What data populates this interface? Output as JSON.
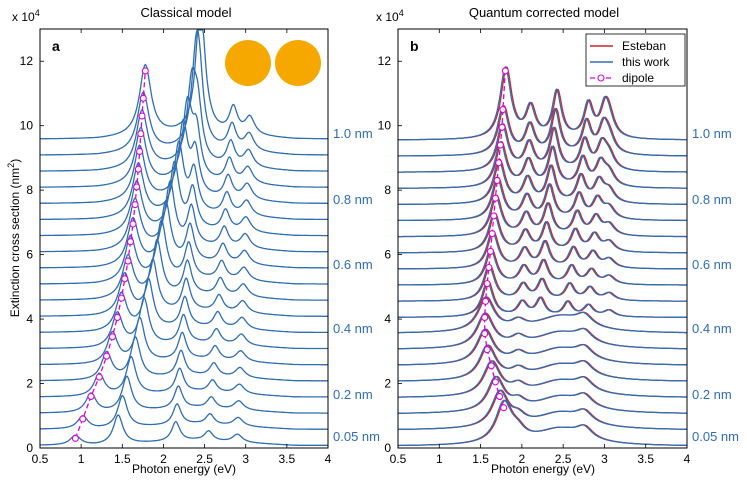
{
  "chart_data": [
    {
      "panel_label": "a",
      "type": "line",
      "title": "Classical model",
      "xlabel": "Photon energy (eV)",
      "ylabel": "Extinction cross section (nm",
      "ylabel_sup": "2",
      "ylabel_end": ")",
      "exponent_label": "x 10",
      "exponent_power": "4",
      "xlim": [
        0.5,
        4
      ],
      "ylim": [
        0,
        13
      ],
      "x_ticks": [
        "0.5",
        "1",
        "1.5",
        "2",
        "2.5",
        "3",
        "3.5",
        "4"
      ],
      "y_ticks": [
        "0",
        "2",
        "4",
        "6",
        "8",
        "10",
        "12"
      ],
      "gap_labels": [
        "0.05 nm",
        "0.2 nm",
        "0.4 nm",
        "0.6 nm",
        "0.8 nm",
        "1.0 nm"
      ],
      "curves": 20,
      "offset_step": 0.5,
      "dipole_trace": {
        "name": "dipole",
        "energies": [
          0.93,
          1.02,
          1.12,
          1.22,
          1.31,
          1.38,
          1.44,
          1.49,
          1.53,
          1.57,
          1.6,
          1.63,
          1.655,
          1.675,
          1.695,
          1.71,
          1.725,
          1.74,
          1.755,
          1.78
        ],
        "peak_values": [
          0.3,
          0.9,
          1.6,
          2.2,
          2.85,
          3.45,
          4.05,
          4.65,
          5.25,
          5.8,
          6.4,
          6.95,
          7.55,
          8.1,
          8.65,
          9.2,
          9.75,
          10.3,
          10.85,
          11.7
        ]
      }
    },
    {
      "panel_label": "b",
      "type": "line",
      "title": "Quantum corrected model",
      "xlabel": "Photon energy (eV)",
      "exponent_label": "x 10",
      "exponent_power": "4",
      "xlim": [
        0.5,
        4
      ],
      "ylim": [
        0,
        13
      ],
      "x_ticks": [
        "0.5",
        "1",
        "1.5",
        "2",
        "2.5",
        "3",
        "3.5",
        "4"
      ],
      "y_ticks": [
        "0",
        "2",
        "4",
        "6",
        "8",
        "10",
        "12"
      ],
      "gap_labels": [
        "0.05 nm",
        "0.2 nm",
        "0.4 nm",
        "0.6 nm",
        "0.8 nm",
        "1.0 nm"
      ],
      "curves": 20,
      "offset_step": 0.5,
      "legend": [
        {
          "name": "Esteban",
          "color": "#c8282d"
        },
        {
          "name": "this work",
          "color": "#2e6eb5"
        },
        {
          "name": "dipole",
          "color": "#e000e0"
        }
      ],
      "dipole_trace": {
        "name": "dipole",
        "energies": [
          1.78,
          1.73,
          1.68,
          1.63,
          1.58,
          1.55,
          1.55,
          1.56,
          1.58,
          1.6,
          1.62,
          1.64,
          1.66,
          1.68,
          1.7,
          1.72,
          1.74,
          1.76,
          1.77,
          1.8
        ],
        "peak_values": [
          1.25,
          1.6,
          2.05,
          2.55,
          3.05,
          3.55,
          4.05,
          4.55,
          5.1,
          5.6,
          6.1,
          6.65,
          7.2,
          7.75,
          8.3,
          8.85,
          9.4,
          9.95,
          10.5,
          11.7
        ]
      }
    }
  ],
  "colors": {
    "this_work": "#2e6eb5",
    "esteban": "#c8282d",
    "dipole": "#e000e0",
    "sphere": "#f7a800",
    "gap_label": "#2e6eb5"
  }
}
